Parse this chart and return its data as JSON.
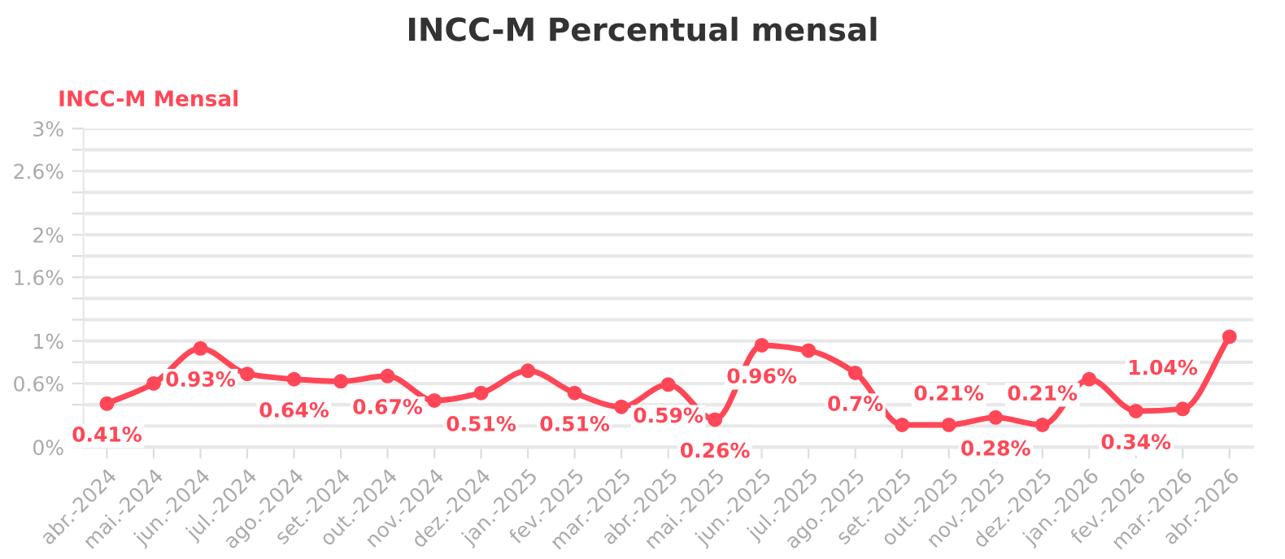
{
  "chart_data": {
    "type": "line",
    "title": "INCC-M Percentual mensal",
    "categories": [
      "abr.-2024",
      "mai.-2024",
      "jun.-2024",
      "jul.-2024",
      "ago.-2024",
      "set.-2024",
      "out.-2024",
      "nov.-2024",
      "dez.-2024",
      "jan.-2025",
      "fev.-2025",
      "mar.-2025",
      "abr.-2025",
      "mai.-2025",
      "jun.-2025",
      "jul.-2025",
      "ago.-2025",
      "set.-2025",
      "out.-2025",
      "nov.-2025",
      "dez.-2025",
      "jan.-2026",
      "fev.-2026",
      "mar.-2026",
      "abr.-2026"
    ],
    "series": [
      {
        "name": "INCC-M Mensal",
        "color": "#ff4757",
        "values": [
          0.41,
          0.6,
          0.93,
          0.69,
          0.64,
          0.62,
          0.67,
          0.44,
          0.51,
          0.72,
          0.51,
          0.38,
          0.59,
          0.26,
          0.96,
          0.91,
          0.7,
          0.21,
          0.21,
          0.28,
          0.21,
          0.64,
          0.34,
          0.36,
          1.04
        ],
        "value_labels": [
          "0.41%",
          null,
          "0.93%",
          null,
          "0.64%",
          null,
          "0.67%",
          null,
          "0.51%",
          null,
          "0.51%",
          null,
          "0.59%",
          "0.26%",
          "0.96%",
          null,
          "0.7%",
          null,
          "0.21%",
          "0.28%",
          "0.21%",
          null,
          "0.34%",
          null,
          "1.04%"
        ]
      }
    ],
    "ylim": [
      0,
      3
    ],
    "yticks": [
      {
        "value": 0,
        "label": "0%"
      },
      {
        "value": 0.2,
        "label": null
      },
      {
        "value": 0.4,
        "label": null
      },
      {
        "value": 0.6,
        "label": "0.6%"
      },
      {
        "value": 0.8,
        "label": null
      },
      {
        "value": 1,
        "label": "1%"
      },
      {
        "value": 1.2,
        "label": null
      },
      {
        "value": 1.4,
        "label": null
      },
      {
        "value": 1.6,
        "label": "1.6%"
      },
      {
        "value": 1.8,
        "label": null
      },
      {
        "value": 2,
        "label": "2%"
      },
      {
        "value": 2.2,
        "label": null
      },
      {
        "value": 2.4,
        "label": null
      },
      {
        "value": 2.6,
        "label": "2.6%"
      },
      {
        "value": 2.8,
        "label": null
      },
      {
        "value": 3,
        "label": "3%"
      }
    ],
    "grid": "y",
    "legend": "top left",
    "marker": "circle",
    "line_style": "solid"
  }
}
